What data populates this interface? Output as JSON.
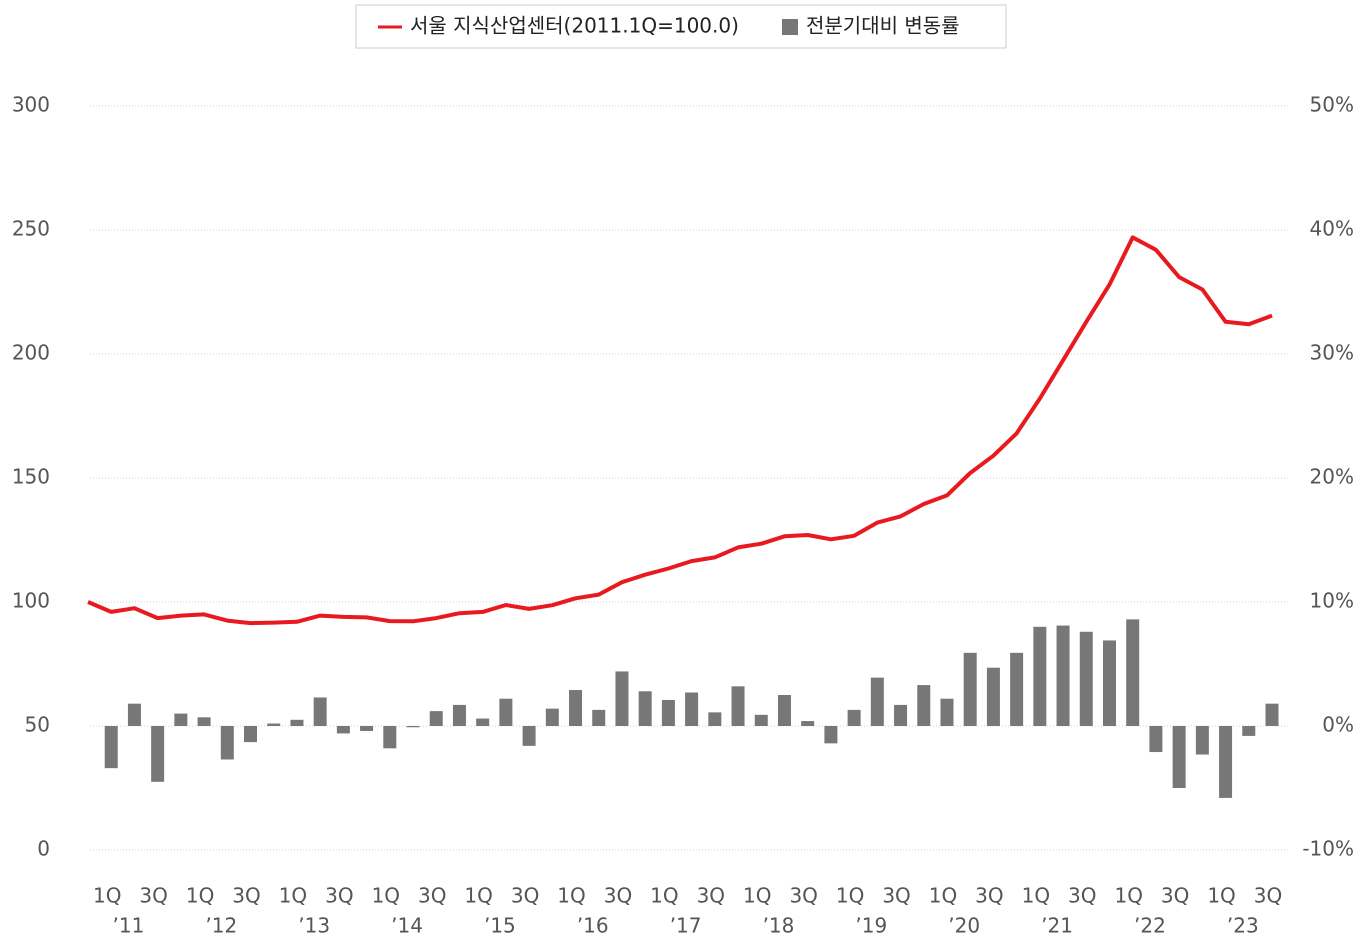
{
  "chart_data": {
    "type": "combo",
    "categories": [
      null,
      "1Q",
      null,
      "3Q",
      null,
      "1Q",
      null,
      "3Q",
      null,
      "1Q",
      null,
      "3Q",
      null,
      "1Q",
      null,
      "3Q",
      null,
      "1Q",
      null,
      "3Q",
      null,
      "1Q",
      null,
      "3Q",
      null,
      "1Q",
      null,
      "3Q",
      null,
      "1Q",
      null,
      "3Q",
      null,
      "1Q",
      null,
      "3Q",
      null,
      "1Q",
      null,
      "3Q",
      null,
      "1Q",
      null,
      "3Q",
      null,
      "1Q",
      null,
      "3Q",
      null,
      "1Q",
      null,
      "3Q"
    ],
    "year_labels": [
      "’11",
      "’12",
      "’13",
      "’14",
      "’15",
      "’16",
      "’17",
      "’18",
      "’19",
      "’20",
      "’21",
      "’22",
      "’23"
    ],
    "series": [
      {
        "name": "서울 지식산업센터(2011.1Q=100.0)",
        "type": "line",
        "color": "#e8191f",
        "values": [
          100,
          96,
          97.5,
          93.5,
          94.5,
          95,
          92.5,
          91.5,
          91.7,
          92,
          94.5,
          94,
          93.8,
          92.3,
          92.2,
          93.5,
          95.5,
          96,
          98.8,
          97.2,
          98.7,
          101.5,
          103,
          108,
          111,
          113.5,
          116.5,
          118,
          122,
          123.5,
          126.5,
          127,
          125.3,
          126.7,
          132,
          134.5,
          139.5,
          143,
          152,
          159,
          168,
          182,
          197.5,
          213,
          228,
          247,
          242,
          231,
          226,
          213,
          212,
          215.5
        ]
      },
      {
        "name": "전분기대비 변동률",
        "type": "bar",
        "axis": "y2",
        "color": "#777777",
        "values": [
          null,
          -3.4,
          1.8,
          -4.5,
          1.0,
          0.7,
          -2.7,
          -1.3,
          0.2,
          0.5,
          2.3,
          -0.6,
          -0.4,
          -1.8,
          -0.1,
          1.2,
          1.7,
          0.6,
          2.2,
          -1.6,
          1.4,
          2.9,
          1.3,
          4.4,
          2.8,
          2.1,
          2.7,
          1.1,
          3.2,
          0.9,
          2.5,
          0.4,
          -1.4,
          1.3,
          3.9,
          1.7,
          3.3,
          2.2,
          5.9,
          4.7,
          5.9,
          8.0,
          8.1,
          7.6,
          6.9,
          8.6,
          -2.1,
          -5.0,
          -2.3,
          -5.8,
          -0.8,
          1.8
        ]
      }
    ],
    "ylim": [
      0,
      300
    ],
    "yticks": [
      0,
      50,
      100,
      150,
      200,
      250,
      300
    ],
    "y2lim": [
      -10,
      50
    ],
    "y2ticks": [
      {
        "value": -10,
        "label": "-10%"
      },
      {
        "value": 0,
        "label": "0%"
      },
      {
        "value": 10,
        "label": "10%"
      },
      {
        "value": 20,
        "label": "20%"
      },
      {
        "value": 30,
        "label": "30%"
      },
      {
        "value": 40,
        "label": "40%"
      },
      {
        "value": 50,
        "label": "50%"
      }
    ],
    "grid": true,
    "legend": "top"
  }
}
